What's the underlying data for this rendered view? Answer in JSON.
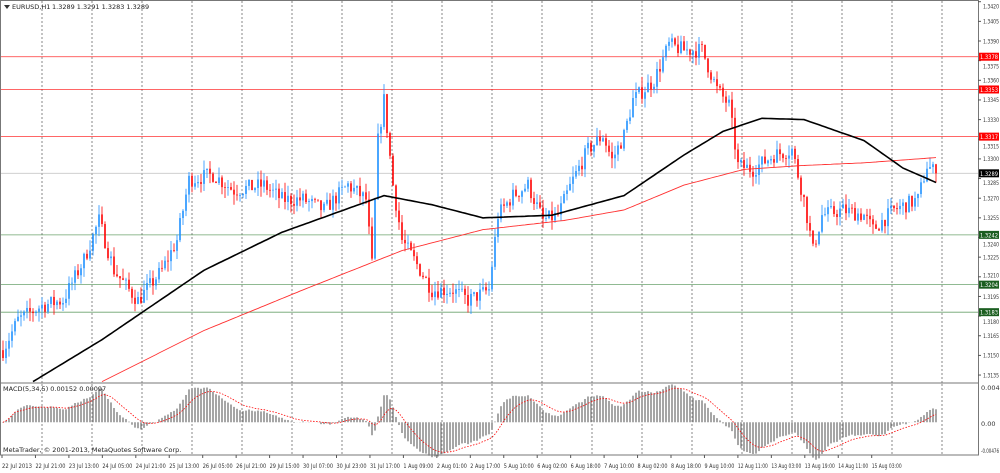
{
  "header": {
    "symbol": "EURUSD,H1",
    "ohlc": "1.3289 1.3291 1.3283 1.3289"
  },
  "macd": {
    "label": "MACD(5,34,5) 0.00152 0.00097",
    "scale_labels": [
      "0.0047",
      "0.00",
      "-0.00476"
    ],
    "range": [
      -0.00476,
      0.0047
    ]
  },
  "copyright": "MetaTrader, © 2001-2013, MetaQuotes Software Corp.",
  "colors": {
    "bull": "#1e90ff",
    "bear": "#ff0000",
    "ma_slow": "#000000",
    "ma_fast": "#ff3030",
    "resistance": "#ff0000",
    "support": "#2e7d32",
    "macd_hist": "#808080",
    "macd_signal": "#ff0000",
    "grid": "#555555"
  },
  "chart_data": {
    "type": "candlestick",
    "symbol": "EURUSD",
    "timeframe": "H1",
    "grid": true,
    "ylim": [
      1.313,
      1.342
    ],
    "y_ticks": [
      "1.3420",
      "1.3405",
      "1.3390",
      "1.3375",
      "1.3360",
      "1.3345",
      "1.3330",
      "1.3315",
      "1.3300",
      "1.3285",
      "1.3270",
      "1.3255",
      "1.3240",
      "1.3225",
      "1.3210",
      "1.3195",
      "1.3180",
      "1.3165",
      "1.3150",
      "1.3135"
    ],
    "x_ticks": [
      "22 Jul 2013",
      "22 Jul 21:00",
      "23 Jul 13:00",
      "24 Jul 05:00",
      "24 Jul 21:00",
      "25 Jul 13:00",
      "26 Jul 05:00",
      "26 Jul 21:00",
      "29 Jul 15:00",
      "30 Jul 07:00",
      "30 Jul 23:00",
      "31 Jul 17:00",
      "1 Aug 09:00",
      "2 Aug 01:00",
      "2 Aug 17:00",
      "5 Aug 10:00",
      "6 Aug 02:00",
      "6 Aug 18:00",
      "7 Aug 10:00",
      "8 Aug 02:00",
      "8 Aug 18:00",
      "9 Aug 10:00",
      "12 Aug 11:00",
      "13 Aug 03:00",
      "13 Aug 19:00",
      "14 Aug 11:00",
      "15 Aug 03:00"
    ],
    "price_path": [
      [
        0,
        1.3154
      ],
      [
        5,
        1.3177
      ],
      [
        13,
        1.3188
      ],
      [
        20,
        1.3192
      ],
      [
        27,
        1.3223
      ],
      [
        32,
        1.3253
      ],
      [
        37,
        1.3215
      ],
      [
        42,
        1.32
      ],
      [
        45,
        1.3192
      ],
      [
        53,
        1.3215
      ],
      [
        58,
        1.3238
      ],
      [
        62,
        1.3284
      ],
      [
        70,
        1.3288
      ],
      [
        77,
        1.3276
      ],
      [
        87,
        1.328
      ],
      [
        93,
        1.3269
      ],
      [
        100,
        1.3269
      ],
      [
        107,
        1.3261
      ],
      [
        115,
        1.328
      ],
      [
        121,
        1.3269
      ],
      [
        123,
        1.3219
      ],
      [
        125,
        1.3314
      ],
      [
        127,
        1.3345
      ],
      [
        130,
        1.328
      ],
      [
        133,
        1.3238
      ],
      [
        137,
        1.3223
      ],
      [
        143,
        1.32
      ],
      [
        150,
        1.32
      ],
      [
        155,
        1.3192
      ],
      [
        162,
        1.32
      ],
      [
        165,
        1.3257
      ],
      [
        170,
        1.3272
      ],
      [
        175,
        1.328
      ],
      [
        180,
        1.3253
      ],
      [
        185,
        1.3257
      ],
      [
        190,
        1.3284
      ],
      [
        195,
        1.3307
      ],
      [
        200,
        1.3318
      ],
      [
        203,
        1.3299
      ],
      [
        207,
        1.3318
      ],
      [
        210,
        1.3345
      ],
      [
        217,
        1.336
      ],
      [
        222,
        1.3387
      ],
      [
        227,
        1.3383
      ],
      [
        233,
        1.3383
      ],
      [
        238,
        1.3353
      ],
      [
        242,
        1.3341
      ],
      [
        245,
        1.3295
      ],
      [
        250,
        1.3292
      ],
      [
        257,
        1.3303
      ],
      [
        263,
        1.3307
      ],
      [
        267,
        1.3269
      ],
      [
        270,
        1.323
      ],
      [
        273,
        1.3257
      ],
      [
        280,
        1.3261
      ],
      [
        287,
        1.3257
      ],
      [
        290,
        1.3246
      ],
      [
        297,
        1.3261
      ],
      [
        305,
        1.3269
      ],
      [
        308,
        1.3295
      ],
      [
        311,
        1.3289
      ]
    ],
    "ma_slow": [
      [
        10,
        1.313
      ],
      [
        33,
        1.3162
      ],
      [
        67,
        1.3215
      ],
      [
        93,
        1.3244
      ],
      [
        127,
        1.3272
      ],
      [
        143,
        1.3265
      ],
      [
        160,
        1.3255
      ],
      [
        183,
        1.3257
      ],
      [
        207,
        1.3272
      ],
      [
        227,
        1.3303
      ],
      [
        240,
        1.3321
      ],
      [
        253,
        1.3331
      ],
      [
        267,
        1.333
      ],
      [
        287,
        1.3314
      ],
      [
        300,
        1.3293
      ],
      [
        311,
        1.3282
      ]
    ],
    "ma_fast": [
      [
        33,
        1.313
      ],
      [
        67,
        1.3169
      ],
      [
        100,
        1.32
      ],
      [
        133,
        1.323
      ],
      [
        160,
        1.3246
      ],
      [
        187,
        1.3253
      ],
      [
        207,
        1.3261
      ],
      [
        227,
        1.328
      ],
      [
        247,
        1.3292
      ],
      [
        267,
        1.3295
      ],
      [
        287,
        1.3297
      ],
      [
        311,
        1.3301
      ]
    ],
    "levels": [
      {
        "price": 1.3378,
        "label": "1.3378",
        "kind": "resistance"
      },
      {
        "price": 1.3353,
        "label": "1.3353",
        "kind": "resistance"
      },
      {
        "price": 1.3317,
        "label": "1.3317",
        "kind": "resistance"
      },
      {
        "price": 1.3289,
        "label": "1.3289",
        "kind": "current"
      },
      {
        "price": 1.3242,
        "label": "1.3242",
        "kind": "support"
      },
      {
        "price": 1.3204,
        "label": "1.3204",
        "kind": "support"
      },
      {
        "price": 1.3183,
        "label": "1.3183",
        "kind": "support"
      }
    ]
  }
}
